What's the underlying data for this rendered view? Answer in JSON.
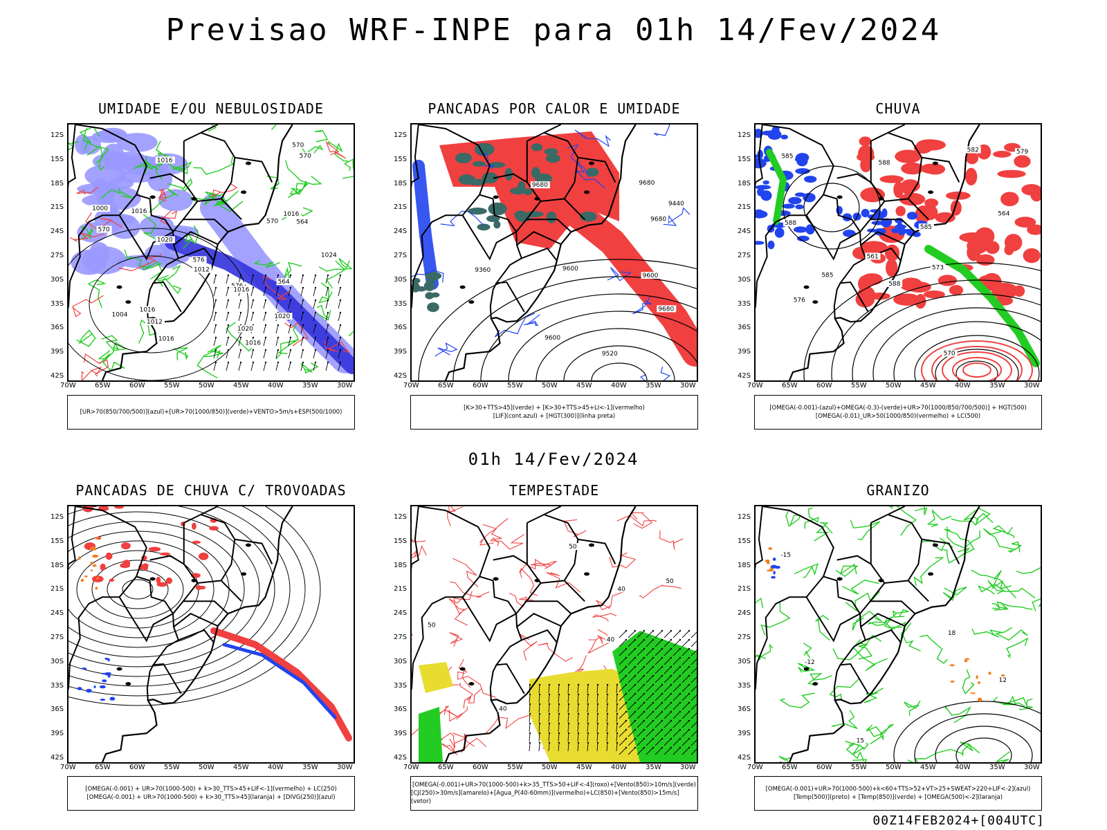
{
  "title": "Previsao WRF-INPE  para 01h 14/Fev/2024",
  "mid_title": "01h 14/Fev/2024",
  "footer": "00Z14FEB2024+[004UTC]",
  "lat_labels": [
    "12S",
    "15S",
    "18S",
    "21S",
    "24S",
    "27S",
    "30S",
    "33S",
    "36S",
    "39S",
    "42S"
  ],
  "lon_labels": [
    "70W",
    "65W",
    "60W",
    "55W",
    "50W",
    "45W",
    "40W",
    "35W",
    "30W"
  ],
  "panels": [
    {
      "title": "UMIDADE E/OU NEBULOSIDADE",
      "legend": [
        "[UR>70(850/700/500)](azul)+[UR>70(1000/850)](verde)+VENTO>5m/s+ESP(500/1000)"
      ],
      "labels": [
        "1016",
        "1016",
        "1016",
        "1016",
        "1016",
        "1020",
        "1024",
        "1020",
        "1012",
        "1012",
        "1004",
        "1000",
        "576",
        "576",
        "570",
        "570",
        "570",
        "570",
        "564",
        "564",
        "1020",
        "1016",
        "1016"
      ]
    },
    {
      "title": "PANCADAS POR CALOR E UMIDADE",
      "legend": [
        "[K>30+TTS>45](verde) + [K>30+TTS>45+LI<-1](vermelho)",
        "[LIF](cont.azul) + [HGT(300)](linha preta)"
      ],
      "labels": [
        "9680",
        "9600",
        "9680",
        "9680",
        "9680",
        "9520",
        "9440",
        "9360",
        "9600",
        "9600"
      ]
    },
    {
      "title": "CHUVA",
      "legend": [
        "[OMEGA(-0.001)-(azul)+OMEGA(-0.3)-(verde)+UR>70(1000/850/700/500)] + HGT(500)",
        "[OMEGA(-0.01)_UR>50(1000/850)(vermelho) + LC(500)"
      ],
      "labels": [
        "585",
        "588",
        "588",
        "585",
        "585",
        "582",
        "579",
        "576",
        "573",
        "570",
        "564",
        "561",
        "588"
      ]
    },
    {
      "title": "PANCADAS DE CHUVA C/ TROVOADAS",
      "legend": [
        "[OMEGA(-0.001) + UR>70(1000-500) + k>30_TTS>45+LIF<-1](vermelho) + LC(250)",
        "[OMEGA(-0.001) + UR>70(1000-500) + k>30_TTS>45](laranja) + [DIVG(250)](azul)"
      ],
      "labels": []
    },
    {
      "title": "TEMPESTADE",
      "legend": [
        "[OMEGA(-0.001)+UR>70(1000-500)+k>35_TTS>50+LIF<-4](roxo)+[Vento(850)>10m/s](verde)",
        "[CJ(250)>30m/s](amarelo)+[Agua_P(40-60mm)](vermelho)+LC(850)+[Vento(850)>15m/s](vetor)"
      ],
      "labels": [
        "40",
        "50",
        "40",
        "50",
        "40",
        "50"
      ]
    },
    {
      "title": "GRANIZO",
      "legend": [
        "[OMEGA(-0.001)+UR>70(1000-500)+k<60+TTS>52+VT>25+SWEAT>220+LIF<-2](azul)",
        "[Temp(500)](preto) + [Temp(850)](verde) + [OMEGA(500)<-2](laranja)"
      ],
      "labels": [
        "-15",
        "-12",
        "15",
        "18",
        "12"
      ]
    }
  ],
  "colors": {
    "green": "#22cc22",
    "red": "#f04040",
    "blue": "#2244ee",
    "lightblue": "#9999ff",
    "darkblue": "#3333dd",
    "yellow": "#e8dc30",
    "orange": "#f08020",
    "teal": "#3a6a66"
  }
}
